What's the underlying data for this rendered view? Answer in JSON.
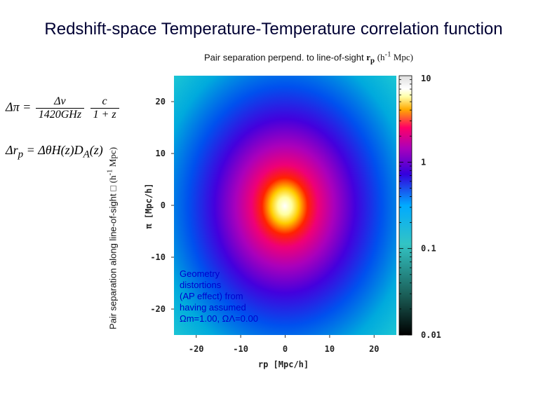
{
  "slide": {
    "title": "Redshift-space Temperature-Temperature correlation function",
    "top_axis_label_text": "Pair separation perpend. to line-of-sight",
    "top_axis_label_symbol": "rp",
    "top_axis_label_unit": "(h-1 Mpc)",
    "side_axis_label_text": "Pair separation along line-of-sight",
    "side_axis_label_unit": "(h-1 Mpc)",
    "equation_1": "Δπ = Δν/(1420GHz) · c/(1+z)",
    "equation_2": "Δr_p = ΔθH(z)D_A(z)",
    "annotation_lines": [
      "Geometry",
      "distortions",
      "(AP effect) from",
      "having assumed",
      "Ωm=1.00, ΩΛ=0.00"
    ]
  },
  "chart_data": {
    "type": "heatmap",
    "xlabel": "rp [Mpc/h]",
    "ylabel": "π [Mpc/h]",
    "xlim": [
      -25,
      25
    ],
    "ylim": [
      -25,
      25
    ],
    "x_ticks": [
      -20,
      -10,
      0,
      10,
      20
    ],
    "y_ticks": [
      -20,
      -10,
      0,
      10,
      20
    ],
    "colorbar": {
      "scale": "log",
      "range": [
        0.01,
        10
      ],
      "tick_labels": [
        "10",
        "1",
        "0.1",
        "0.01"
      ],
      "tick_values": [
        10,
        1,
        0.1,
        0.01
      ]
    },
    "description_values": {
      "peak_value": 10,
      "anisotropy": "contours elongated along π (line-of-sight)"
    }
  }
}
